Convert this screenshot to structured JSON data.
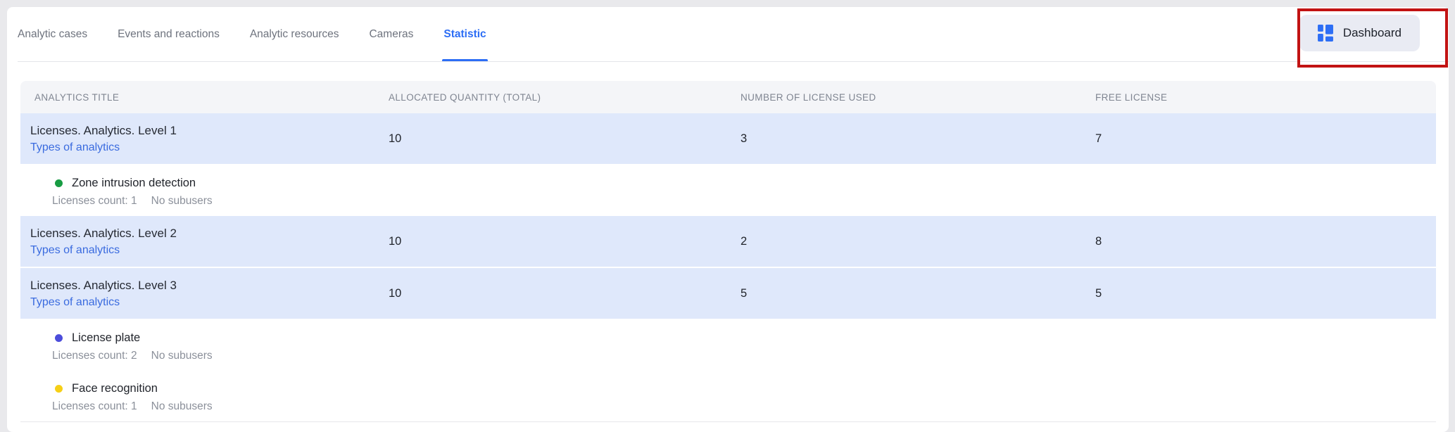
{
  "tabs": {
    "items": [
      {
        "label": "Analytic cases",
        "active": false
      },
      {
        "label": "Events and reactions",
        "active": false
      },
      {
        "label": "Analytic resources",
        "active": false
      },
      {
        "label": "Cameras",
        "active": false
      },
      {
        "label": "Statistic",
        "active": true
      }
    ]
  },
  "toolbar": {
    "dashboard_label": "Dashboard",
    "dashboard_icon": "dashboard-grid-icon"
  },
  "table": {
    "headers": [
      "ANALYTICS TITLE",
      "ALLOCATED QUANTITY (TOTAL)",
      "NUMBER OF LICENSE USED",
      "FREE LICENSE"
    ],
    "rows": [
      {
        "type": "license",
        "title": "Licenses. Analytics. Level 1",
        "link": "Types of analytics",
        "allocated": "10",
        "used": "3",
        "free": "7"
      },
      {
        "type": "analytic",
        "dot_color": "#189c43",
        "dot_name": "green-dot-icon",
        "title": "Zone intrusion detection",
        "licenses_count": "Licenses count: 1",
        "subusers": "No subusers"
      },
      {
        "type": "license",
        "title": "Licenses. Analytics. Level 2",
        "link": "Types of analytics",
        "allocated": "10",
        "used": "2",
        "free": "8"
      },
      {
        "type": "license",
        "title": "Licenses. Analytics. Level 3",
        "link": "Types of analytics",
        "allocated": "10",
        "used": "5",
        "free": "5"
      },
      {
        "type": "analytic",
        "dot_color": "#4c4ddb",
        "dot_name": "blue-dot-icon",
        "title": "License plate",
        "licenses_count": "Licenses count: 2",
        "subusers": "No subusers"
      },
      {
        "type": "analytic",
        "dot_color": "#f6cf16",
        "dot_name": "yellow-dot-icon",
        "title": "Face recognition",
        "licenses_count": "Licenses count: 1",
        "subusers": "No subusers"
      }
    ]
  },
  "colors": {
    "accent_blue": "#2d6ef5",
    "link_blue": "#3a6bdf",
    "row_highlight": "#dfe8fb",
    "header_bg": "#f4f5f8",
    "page_bg": "#e9e9ec",
    "annotation_red": "#c21313"
  }
}
